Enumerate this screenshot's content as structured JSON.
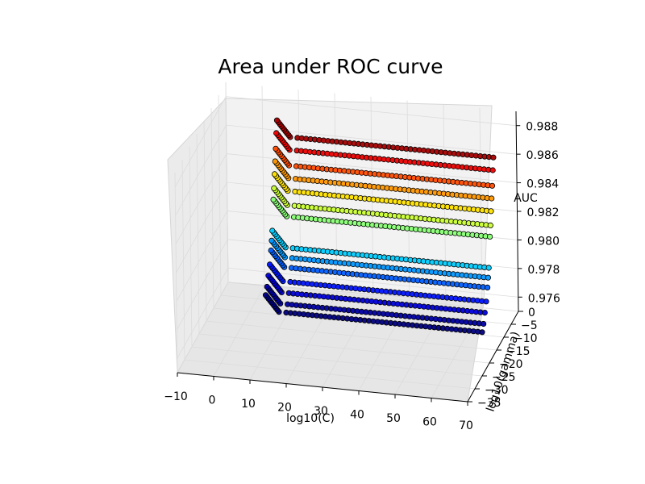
{
  "chart_data": {
    "type": "scatter",
    "title": "Area under ROC curve",
    "xlabel": "log10(C)",
    "ylabel": "log10(gamma)",
    "zlabel": "AUC",
    "x_ticks": [
      "−10",
      "0",
      "10",
      "20",
      "30",
      "40",
      "50",
      "60",
      "70"
    ],
    "y_ticks": [
      "0",
      "−5",
      "−10",
      "−15",
      "−20",
      "−25",
      "−30",
      "−35"
    ],
    "z_ticks": [
      "0.976",
      "0.978",
      "0.980",
      "0.982",
      "0.984",
      "0.986",
      "0.988"
    ],
    "xlim": [
      -10,
      70
    ],
    "ylim": [
      -35,
      0
    ],
    "zlim": [
      0.975,
      0.989
    ],
    "grid": true,
    "colormap": "jet",
    "color_by": "AUC",
    "point_groups": [
      {
        "x_from": 10,
        "x_to": 65,
        "y": -1,
        "z": 0.9858
      },
      {
        "x_from": 10,
        "x_to": 65,
        "y": -1.5,
        "z": 0.985
      },
      {
        "x_from": 10,
        "x_to": 65,
        "y": -2,
        "z": 0.984
      },
      {
        "x_from": 10,
        "x_to": 65,
        "y": -2.5,
        "z": 0.9832
      },
      {
        "x_from": 10,
        "x_to": 65,
        "y": -3,
        "z": 0.9824
      },
      {
        "x_from": 10,
        "x_to": 65,
        "y": -3.5,
        "z": 0.9815
      },
      {
        "x_from": 10,
        "x_to": 65,
        "y": -4,
        "z": 0.9808
      },
      {
        "x_from": 10,
        "x_to": 65,
        "y": -5,
        "z": 0.9788
      },
      {
        "x_from": 10,
        "x_to": 65,
        "y": -5.5,
        "z": 0.9782
      },
      {
        "x_from": 10,
        "x_to": 65,
        "y": -6,
        "z": 0.9776
      },
      {
        "x_from": 10,
        "x_to": 65,
        "y": -7,
        "z": 0.9768
      },
      {
        "x_from": 10,
        "x_to": 65,
        "y": -8,
        "z": 0.9762
      },
      {
        "x_from": 10,
        "x_to": 65,
        "y": -9,
        "z": 0.9756
      },
      {
        "x_from": 10,
        "x_to": 65,
        "y": -10,
        "z": 0.9752
      }
    ]
  }
}
